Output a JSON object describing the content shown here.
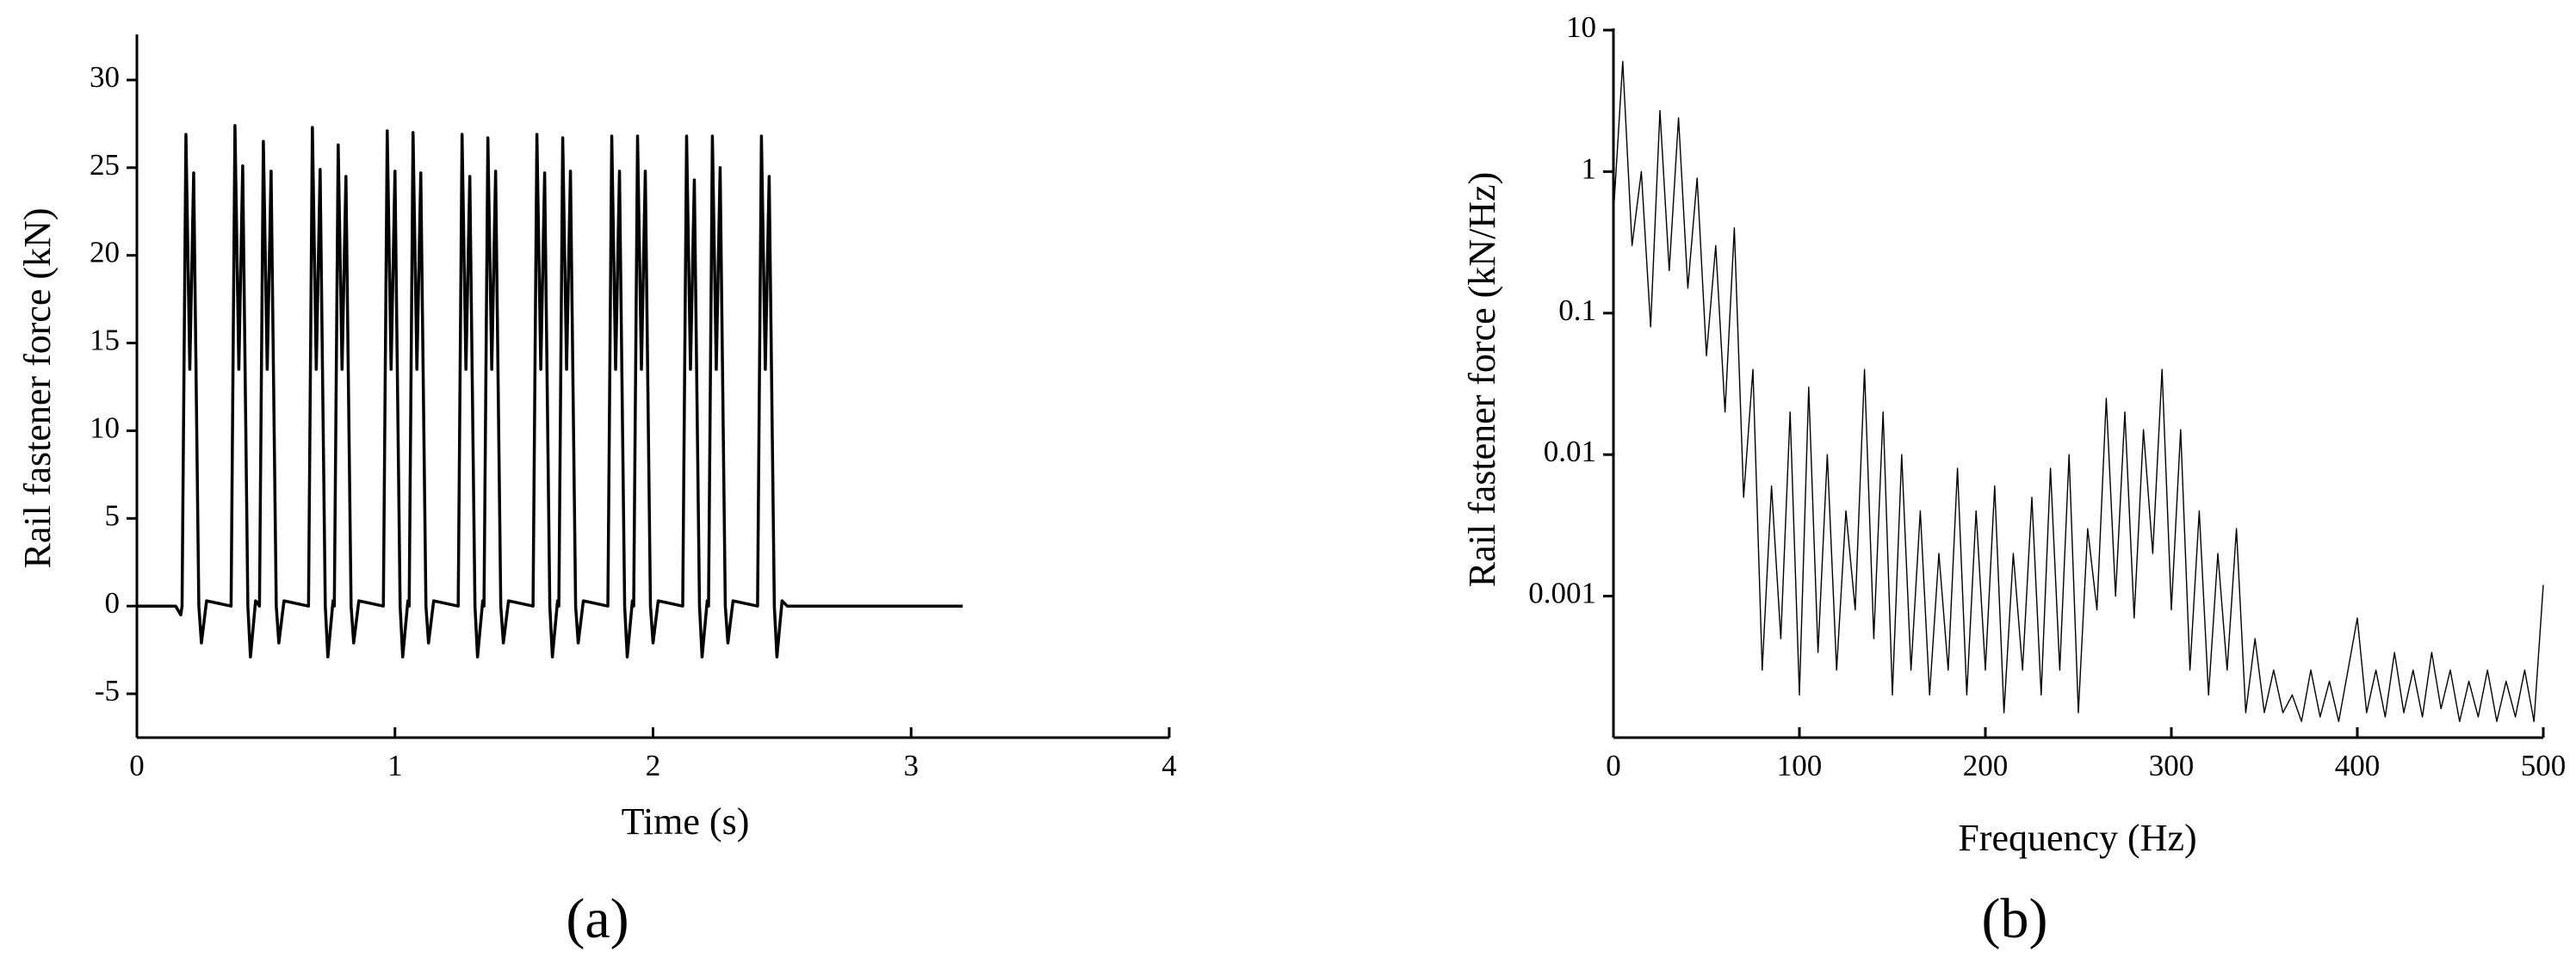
{
  "chart_data": [
    {
      "type": "line",
      "panel_label": "(a)",
      "x_label": "Time (s)",
      "y_label": "Rail fastener force (kN)",
      "color": "#000000",
      "log_y": false,
      "xlim": [
        0,
        4
      ],
      "xticks": [
        0,
        1,
        2,
        3,
        4
      ],
      "ylim": [
        -7.5,
        32.5
      ],
      "yticks": [
        -5,
        0,
        5,
        10,
        15,
        20,
        25,
        30
      ],
      "x": [
        0,
        0.15,
        0.17,
        0.175,
        0.19,
        0.205,
        0.22,
        0.24,
        0.25,
        0.27,
        0.365,
        0.38,
        0.395,
        0.41,
        0.43,
        0.44,
        0.46,
        0.475,
        0.49,
        0.505,
        0.52,
        0.54,
        0.55,
        0.57,
        0.665,
        0.68,
        0.695,
        0.71,
        0.73,
        0.74,
        0.76,
        0.765,
        0.78,
        0.795,
        0.81,
        0.83,
        0.84,
        0.86,
        0.955,
        0.97,
        0.985,
        1.0,
        1.02,
        1.03,
        1.05,
        1.055,
        1.07,
        1.085,
        1.1,
        1.12,
        1.13,
        1.15,
        1.245,
        1.26,
        1.275,
        1.29,
        1.31,
        1.32,
        1.34,
        1.345,
        1.36,
        1.375,
        1.39,
        1.41,
        1.42,
        1.44,
        1.535,
        1.55,
        1.565,
        1.58,
        1.6,
        1.61,
        1.63,
        1.635,
        1.65,
        1.665,
        1.68,
        1.7,
        1.71,
        1.73,
        1.825,
        1.84,
        1.855,
        1.87,
        1.89,
        1.9,
        1.92,
        1.925,
        1.94,
        1.955,
        1.97,
        1.99,
        2.0,
        2.02,
        2.115,
        2.13,
        2.145,
        2.16,
        2.18,
        2.19,
        2.21,
        2.215,
        2.23,
        2.245,
        2.26,
        2.28,
        2.29,
        2.31,
        2.405,
        2.42,
        2.435,
        2.45,
        2.47,
        2.48,
        2.5,
        2.52,
        3.2
      ],
      "values": [
        0,
        0,
        -0.5,
        0,
        26.9,
        13.5,
        24.7,
        0,
        -2.1,
        0.3,
        0,
        27.4,
        13.5,
        25.1,
        0,
        -2.9,
        0.3,
        0,
        26.5,
        13.5,
        24.8,
        0,
        -2.1,
        0.3,
        0,
        27.3,
        13.5,
        24.9,
        0,
        -2.9,
        0.3,
        0,
        26.3,
        13.5,
        24.5,
        0,
        -2.1,
        0.3,
        0,
        27.1,
        13.5,
        24.8,
        0,
        -2.9,
        0.3,
        0,
        27.0,
        13.5,
        24.7,
        0,
        -2.1,
        0.3,
        0,
        26.9,
        13.5,
        24.5,
        0,
        -2.9,
        0.3,
        0,
        26.7,
        13.5,
        24.8,
        0,
        -2.1,
        0.3,
        0,
        26.9,
        13.5,
        24.7,
        0,
        -2.9,
        0.3,
        0,
        26.7,
        13.5,
        24.8,
        0,
        -2.1,
        0.3,
        0,
        26.8,
        13.5,
        24.8,
        0,
        -2.9,
        0.3,
        0,
        26.8,
        13.5,
        24.8,
        0,
        -2.1,
        0.3,
        0,
        26.8,
        13.5,
        24.3,
        0,
        -2.9,
        0.3,
        0,
        26.8,
        13.5,
        25.0,
        0,
        -2.1,
        0.3,
        0,
        26.8,
        13.5,
        24.5,
        0,
        -2.9,
        0.3,
        0,
        0
      ]
    },
    {
      "type": "line",
      "panel_label": "(b)",
      "x_label": "Frequency (Hz)",
      "y_label": "Rail fastener force (kN/Hz)",
      "color": "#000000",
      "log_y": true,
      "xlim": [
        0,
        500
      ],
      "xticks": [
        0,
        100,
        200,
        300,
        400,
        500
      ],
      "ylim": [
        0.0001,
        10
      ],
      "yticks": [
        0.001,
        0.01,
        0.1,
        1,
        10
      ],
      "x": [
        0,
        5,
        10,
        15,
        20,
        25,
        30,
        35,
        40,
        45,
        50,
        55,
        60,
        65,
        70,
        75,
        80,
        85,
        90,
        95,
        100,
        105,
        110,
        115,
        120,
        125,
        130,
        135,
        140,
        145,
        150,
        155,
        160,
        165,
        170,
        175,
        180,
        185,
        190,
        195,
        200,
        205,
        210,
        215,
        220,
        225,
        230,
        235,
        240,
        245,
        250,
        255,
        260,
        265,
        270,
        275,
        280,
        285,
        290,
        295,
        300,
        305,
        310,
        315,
        320,
        325,
        330,
        335,
        340,
        345,
        350,
        355,
        360,
        365,
        370,
        375,
        380,
        385,
        390,
        395,
        400,
        405,
        410,
        415,
        420,
        425,
        430,
        435,
        440,
        445,
        450,
        455,
        460,
        465,
        470,
        475,
        480,
        485,
        490,
        495,
        500
      ],
      "values": [
        0.5,
        6,
        0.3,
        1,
        0.08,
        2.7,
        0.2,
        2.4,
        0.15,
        0.9,
        0.05,
        0.3,
        0.02,
        0.4,
        0.005,
        0.04,
        0.0003,
        0.006,
        0.0005,
        0.02,
        0.0002,
        0.03,
        0.0004,
        0.01,
        0.0003,
        0.004,
        0.0008,
        0.04,
        0.0005,
        0.02,
        0.0002,
        0.01,
        0.0003,
        0.004,
        0.0002,
        0.002,
        0.0003,
        0.008,
        0.0002,
        0.004,
        0.0003,
        0.006,
        0.00015,
        0.002,
        0.0003,
        0.005,
        0.0002,
        0.008,
        0.0003,
        0.01,
        0.00015,
        0.003,
        0.0008,
        0.025,
        0.001,
        0.02,
        0.0007,
        0.015,
        0.002,
        0.04,
        0.0008,
        0.015,
        0.0003,
        0.004,
        0.0002,
        0.002,
        0.0003,
        0.003,
        0.00015,
        0.0005,
        0.00015,
        0.0003,
        0.00015,
        0.0002,
        0.00013,
        0.0003,
        0.00014,
        0.00025,
        0.00013,
        0.0003,
        0.0007,
        0.00015,
        0.0003,
        0.00014,
        0.0004,
        0.00015,
        0.0003,
        0.00014,
        0.0004,
        0.00016,
        0.0003,
        0.00013,
        0.00025,
        0.00014,
        0.0003,
        0.00013,
        0.00025,
        0.00014,
        0.0003,
        0.00013,
        0.0012
      ]
    }
  ]
}
